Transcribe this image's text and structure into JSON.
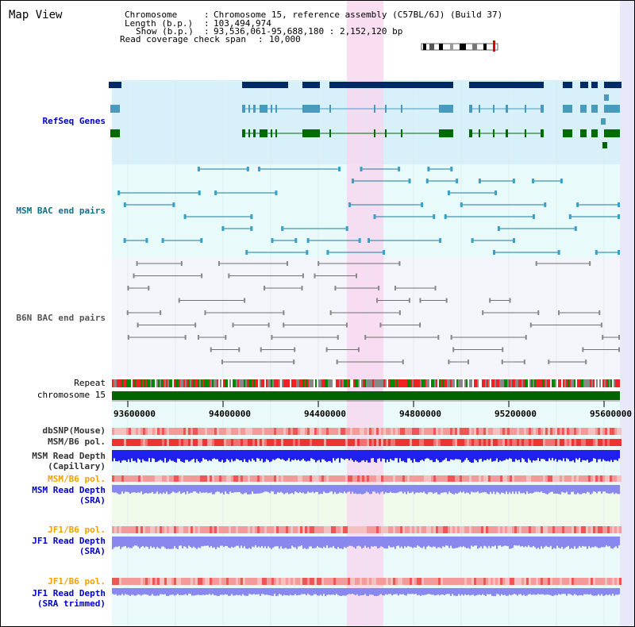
{
  "title": "Map View",
  "info": {
    "chromosome_label": "Chromosome",
    "chromosome_value": "Chromosome 15, reference assembly (C57BL/6J) (Build 37)",
    "length_label": "Length (b.p.)",
    "length_value": "103,494,974",
    "show_label": "Show (b.p.)",
    "show_value": "93,536,061-95,688,180 : 2,152,120 bp",
    "coverage_label": "Read coverage check span",
    "coverage_value": "10,000"
  },
  "tracks": {
    "refseq": "RefSeq Genes",
    "msm_bac": "MSM BAC end pairs",
    "b6n_bac": "B6N BAC end pairs",
    "repeat": "Repeat",
    "chromosome": "chromosome 15",
    "dbsnp": "dbSNP(Mouse)",
    "msm_b6_pol": "MSM/B6 pol.",
    "msm_depth_cap_1": "MSM Read Depth",
    "msm_depth_cap_2": "(Capillary)",
    "msm_b6_pol2": "MSM/B6 pol.",
    "msm_depth_sra_1": "MSM Read Depth",
    "msm_depth_sra_2": "(SRA)",
    "jf1_b6_pol": "JF1/B6 pol.",
    "jf1_depth_sra_1": "JF1 Read Depth",
    "jf1_depth_sra_2": "(SRA)",
    "jf1_b6_pol2": "JF1/B6 pol.",
    "jf1_depth_trim_1": "JF1 Read Depth",
    "jf1_depth_trim_2": "(SRA trimmed)"
  },
  "axis_ticks": [
    "93600000",
    "94000000",
    "94400000",
    "94800000",
    "95200000",
    "95600000"
  ],
  "colors": {
    "refseq_bg": "#d8f0fa",
    "bac_bg": "#e8fafa",
    "highlight": "#f8d8f0",
    "navy_gene": "#002a66",
    "teal_gene": "#4a9ac0",
    "green_gene": "#006400",
    "bac_line": "#1a7a9a",
    "b6n_line": "#707070",
    "chrom_bar": "#006400",
    "snp_red": "#ee3333",
    "depth_blue": "#2020ee",
    "depth_light": "#8888ee"
  }
}
